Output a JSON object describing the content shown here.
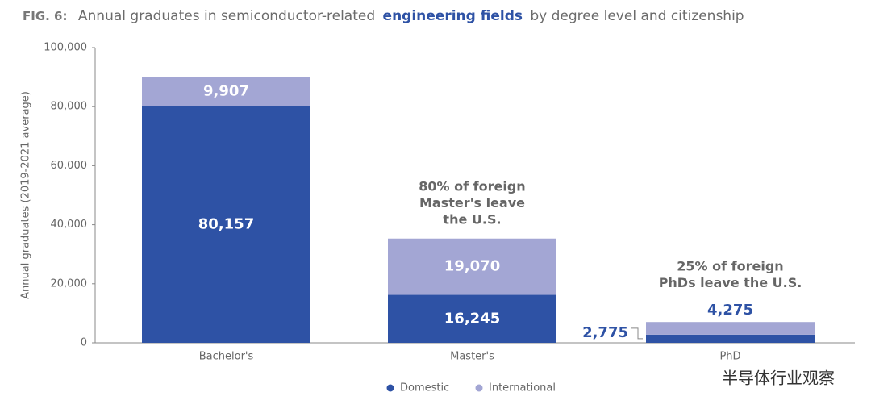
{
  "chart_data": {
    "type": "stacked_bar",
    "figure_label": "FIG. 6:",
    "title_before": "Annual graduates in semiconductor-related",
    "title_emphasis": "engineering fields",
    "title_after": "by degree level and citizenship",
    "y_label": "Annual graduates (2019-2021 average)",
    "categories": [
      "Bachelor's",
      "Master's",
      "PhD"
    ],
    "series": [
      {
        "name": "Domestic",
        "color": "#2e52a5",
        "values": [
          80157,
          16245,
          2775
        ],
        "value_labels": [
          "80,157",
          "16,245",
          "2,775"
        ]
      },
      {
        "name": "International",
        "color": "#a3a6d4",
        "values": [
          9907,
          19070,
          4275
        ],
        "value_labels": [
          "9,907",
          "19,070",
          "4,275"
        ]
      }
    ],
    "ylim": [
      0,
      100000
    ],
    "yticks": [
      0,
      {
        "value": 20000,
        "label": "20,000"
      },
      {
        "value": 40000,
        "label": "40,000"
      },
      {
        "value": 60000,
        "label": "60,000"
      },
      {
        "value": 80000,
        "label": "80,000"
      },
      {
        "value": 100000,
        "label": "100,000"
      }
    ],
    "annotations": [
      {
        "lines": [
          "80% of foreign",
          "Master's leave",
          "the U.S."
        ]
      },
      {
        "lines": [
          "25% of foreign",
          "PhDs leave the U.S."
        ]
      }
    ],
    "watermark": "半导体行业观察"
  }
}
